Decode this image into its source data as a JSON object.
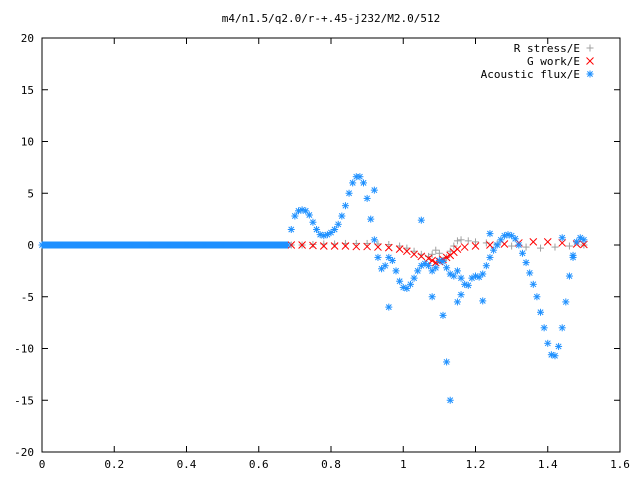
{
  "chart_data": {
    "type": "scatter",
    "title": "m4/n1.5/q2.0/r-+.45-j232/M2.0/512",
    "xlabel": "",
    "ylabel": "",
    "xlim": [
      0,
      1.6
    ],
    "ylim": [
      -20,
      20
    ],
    "x_ticks": [
      "0",
      "0.2",
      "0.4",
      "0.6",
      "0.8",
      "1",
      "1.2",
      "1.4",
      "1.6"
    ],
    "y_ticks": [
      "20",
      "15",
      "10",
      "5",
      "0",
      "-5",
      "-10",
      "-15",
      "-20"
    ],
    "grid": false,
    "legend_position": "top-right",
    "series": [
      {
        "name": "R stress/E",
        "marker": "plus",
        "color": "#a0a0a0",
        "points": [
          [
            0.69,
            0.0
          ],
          [
            0.72,
            0.0
          ],
          [
            0.75,
            0.05
          ],
          [
            0.78,
            0.1
          ],
          [
            0.81,
            0.1
          ],
          [
            0.84,
            0.15
          ],
          [
            0.87,
            0.15
          ],
          [
            0.9,
            0.15
          ],
          [
            0.93,
            0.1
          ],
          [
            0.96,
            0.05
          ],
          [
            0.99,
            -0.1
          ],
          [
            1.01,
            -0.3
          ],
          [
            1.03,
            -0.6
          ],
          [
            1.05,
            -0.9
          ],
          [
            1.07,
            -1.1
          ],
          [
            1.08,
            -0.9
          ],
          [
            1.09,
            -0.5
          ],
          [
            1.1,
            -0.8
          ],
          [
            1.11,
            -1.5
          ],
          [
            1.12,
            -1.2
          ],
          [
            1.13,
            -0.6
          ],
          [
            1.14,
            -0.1
          ],
          [
            1.15,
            0.4
          ],
          [
            1.16,
            0.5
          ],
          [
            1.18,
            0.4
          ],
          [
            1.2,
            0.3
          ],
          [
            1.23,
            0.2
          ],
          [
            1.26,
            0.1
          ],
          [
            1.3,
            -0.1
          ],
          [
            1.34,
            -0.2
          ],
          [
            1.38,
            -0.3
          ],
          [
            1.42,
            -0.2
          ],
          [
            1.46,
            -0.1
          ],
          [
            1.5,
            0.0
          ]
        ]
      },
      {
        "name": "G work/E",
        "marker": "cross",
        "color": "#ff0000",
        "points": [
          [
            0.69,
            0.0
          ],
          [
            0.72,
            0.0
          ],
          [
            0.75,
            -0.05
          ],
          [
            0.78,
            -0.1
          ],
          [
            0.81,
            -0.1
          ],
          [
            0.84,
            -0.1
          ],
          [
            0.87,
            -0.15
          ],
          [
            0.9,
            -0.15
          ],
          [
            0.93,
            -0.2
          ],
          [
            0.96,
            -0.25
          ],
          [
            0.99,
            -0.4
          ],
          [
            1.01,
            -0.6
          ],
          [
            1.03,
            -0.9
          ],
          [
            1.05,
            -1.1
          ],
          [
            1.07,
            -1.3
          ],
          [
            1.08,
            -1.5
          ],
          [
            1.09,
            -1.7
          ],
          [
            1.1,
            -1.6
          ],
          [
            1.11,
            -1.4
          ],
          [
            1.12,
            -1.2
          ],
          [
            1.13,
            -1.0
          ],
          [
            1.14,
            -0.7
          ],
          [
            1.15,
            -0.4
          ],
          [
            1.17,
            -0.2
          ],
          [
            1.2,
            -0.1
          ],
          [
            1.24,
            0.0
          ],
          [
            1.28,
            0.1
          ],
          [
            1.32,
            0.2
          ],
          [
            1.36,
            0.3
          ],
          [
            1.4,
            0.3
          ],
          [
            1.44,
            0.2
          ],
          [
            1.48,
            0.1
          ],
          [
            1.5,
            0.05
          ]
        ]
      },
      {
        "name": "Acoustic flux/E",
        "marker": "star",
        "color": "#1e90ff",
        "points": [
          [
            0.0,
            0.0
          ],
          [
            0.05,
            0.0
          ],
          [
            0.1,
            0.0
          ],
          [
            0.15,
            0.0
          ],
          [
            0.2,
            0.0
          ],
          [
            0.25,
            0.0
          ],
          [
            0.3,
            0.0
          ],
          [
            0.35,
            0.0
          ],
          [
            0.4,
            0.0
          ],
          [
            0.45,
            0.0
          ],
          [
            0.5,
            0.0
          ],
          [
            0.55,
            0.0
          ],
          [
            0.6,
            0.0
          ],
          [
            0.65,
            0.0
          ],
          [
            0.68,
            0.0
          ],
          [
            0.69,
            1.5
          ],
          [
            0.7,
            2.8
          ],
          [
            0.71,
            3.3
          ],
          [
            0.72,
            3.4
          ],
          [
            0.73,
            3.3
          ],
          [
            0.74,
            2.9
          ],
          [
            0.75,
            2.2
          ],
          [
            0.76,
            1.5
          ],
          [
            0.77,
            1.0
          ],
          [
            0.78,
            0.9
          ],
          [
            0.79,
            1.0
          ],
          [
            0.8,
            1.2
          ],
          [
            0.81,
            1.5
          ],
          [
            0.82,
            2.0
          ],
          [
            0.83,
            2.8
          ],
          [
            0.84,
            3.8
          ],
          [
            0.85,
            5.0
          ],
          [
            0.86,
            6.0
          ],
          [
            0.87,
            6.6
          ],
          [
            0.88,
            6.6
          ],
          [
            0.89,
            6.0
          ],
          [
            0.9,
            4.5
          ],
          [
            0.91,
            2.5
          ],
          [
            0.92,
            0.5
          ],
          [
            0.93,
            -1.2
          ],
          [
            0.94,
            -2.3
          ],
          [
            0.95,
            -2.0
          ],
          [
            0.96,
            -1.2
          ],
          [
            0.97,
            -1.5
          ],
          [
            0.98,
            -2.5
          ],
          [
            0.99,
            -3.5
          ],
          [
            1.0,
            -4.1
          ],
          [
            1.01,
            -4.2
          ],
          [
            1.02,
            -3.8
          ],
          [
            1.03,
            -3.2
          ],
          [
            1.04,
            -2.5
          ],
          [
            1.05,
            -2.0
          ],
          [
            1.06,
            -1.8
          ],
          [
            1.07,
            -2.0
          ],
          [
            1.08,
            -2.5
          ],
          [
            1.09,
            -2.2
          ],
          [
            1.1,
            -1.5
          ],
          [
            1.11,
            -1.6
          ],
          [
            1.12,
            -2.2
          ],
          [
            1.13,
            -2.8
          ],
          [
            1.14,
            -3.0
          ],
          [
            1.15,
            -2.5
          ],
          [
            1.16,
            -3.2
          ],
          [
            1.17,
            -3.8
          ],
          [
            1.18,
            -3.9
          ],
          [
            1.19,
            -3.2
          ],
          [
            1.2,
            -3.0
          ],
          [
            1.21,
            -3.1
          ],
          [
            1.22,
            -2.8
          ],
          [
            1.23,
            -2.0
          ],
          [
            1.24,
            -1.2
          ],
          [
            1.25,
            -0.5
          ],
          [
            1.26,
            0.0
          ],
          [
            1.27,
            0.5
          ],
          [
            1.28,
            0.9
          ],
          [
            1.29,
            1.0
          ],
          [
            1.3,
            0.9
          ],
          [
            1.31,
            0.6
          ],
          [
            1.32,
            0.0
          ],
          [
            1.33,
            -0.8
          ],
          [
            1.34,
            -1.7
          ],
          [
            1.35,
            -2.7
          ],
          [
            1.36,
            -3.8
          ],
          [
            1.37,
            -5.0
          ],
          [
            1.38,
            -6.5
          ],
          [
            1.39,
            -8.0
          ],
          [
            1.4,
            -9.5
          ],
          [
            1.41,
            -10.6
          ],
          [
            1.42,
            -10.7
          ],
          [
            1.43,
            -9.8
          ],
          [
            1.44,
            -8.0
          ],
          [
            1.45,
            -5.5
          ],
          [
            1.46,
            -3.0
          ],
          [
            1.47,
            -1.0
          ],
          [
            1.48,
            0.3
          ],
          [
            1.49,
            0.7
          ],
          [
            1.5,
            0.5
          ],
          [
            0.92,
            5.3
          ],
          [
            0.96,
            -6.0
          ],
          [
            1.05,
            2.4
          ],
          [
            1.08,
            -5.0
          ],
          [
            1.11,
            -6.8
          ],
          [
            1.12,
            -11.3
          ],
          [
            1.13,
            -15.0
          ],
          [
            1.15,
            -5.5
          ],
          [
            1.16,
            -4.8
          ],
          [
            1.22,
            -5.4
          ],
          [
            1.24,
            1.1
          ],
          [
            1.44,
            0.7
          ],
          [
            1.47,
            -1.2
          ]
        ]
      }
    ]
  }
}
